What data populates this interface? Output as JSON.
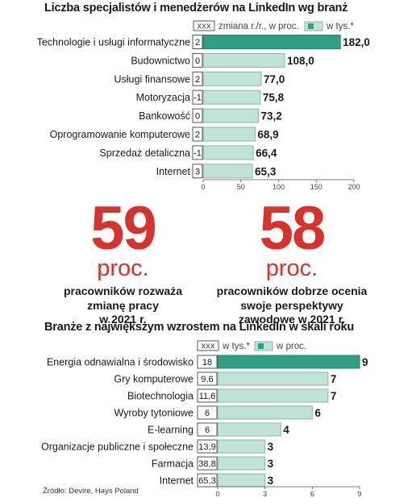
{
  "chart_data": [
    {
      "type": "bar",
      "orientation": "horizontal",
      "title": "Liczba specjalistów i menedżerów  na LinkedIn wg branż",
      "legend": {
        "box_label": "XXX",
        "box_text": "zmiana r./r., w proc.",
        "bar_text": "w tys.*"
      },
      "categories": [
        "Technologie i usługi informatyczne",
        "Budownictwo",
        "Usługi finansowe",
        "Motoryzacja",
        "Bankowość",
        "Oprogramowanie komputerowe",
        "Sprzedaż detaliczna",
        "Internet"
      ],
      "change": [
        "2",
        "0",
        "2",
        "-1",
        "0",
        "2",
        "-1",
        "3"
      ],
      "values": [
        182.0,
        108.0,
        77.0,
        75.8,
        73.2,
        68.9,
        66.4,
        65.3
      ],
      "value_labels": [
        "182,0",
        "108,0",
        "77,0",
        "75,8",
        "73,2",
        "68,9",
        "66,4",
        "65,3"
      ],
      "xlim": [
        0,
        200
      ],
      "xticks": [
        0,
        50,
        100,
        150,
        200
      ],
      "highlight_index": 0
    },
    {
      "type": "bar",
      "orientation": "horizontal",
      "title": "Branże z największym wzrostem na LinkedIn w skali roku",
      "legend": {
        "box_label": "XXX",
        "box_text": "w tys.*",
        "bar_text": "w proc."
      },
      "categories": [
        "Energia odnawialna i środowisko",
        "Gry komputerowe",
        "Biotechnologia",
        "Wyroby tytoniowe",
        "E-learning",
        "Organizacje publiczne i społeczne",
        "Farmacja",
        "Internet"
      ],
      "count": [
        "18",
        "9,6",
        "11,6",
        "6",
        "6",
        "13,9",
        "38,8",
        "65,3"
      ],
      "values": [
        9,
        7,
        7,
        6,
        4,
        3,
        3,
        3
      ],
      "value_labels": [
        "9",
        "7",
        "7",
        "6",
        "4",
        "3",
        "3",
        "3"
      ],
      "xlim": [
        0,
        9
      ],
      "xticks": [
        0,
        3,
        6,
        9
      ],
      "highlight_index": 0
    }
  ],
  "stats": [
    {
      "number": "59",
      "unit": "proc.",
      "lines": [
        "pracowników rozważa",
        "zmianę pracy",
        "w 2021 r."
      ]
    },
    {
      "number": "58",
      "unit": "proc.",
      "lines": [
        "pracowników dobrze ocenia",
        "swoje perspektywy",
        "zawodowe w 2021 r."
      ]
    }
  ],
  "source": "Źródło: Devire, Hays Poland",
  "colors": {
    "bar": "#bfe3d6",
    "bar_border": "#8fb3a6",
    "highlight": "#2fa083",
    "box_border": "#555555",
    "accent_red": "#d9322a",
    "text": "#1a1a1a",
    "axis": "#555555"
  }
}
